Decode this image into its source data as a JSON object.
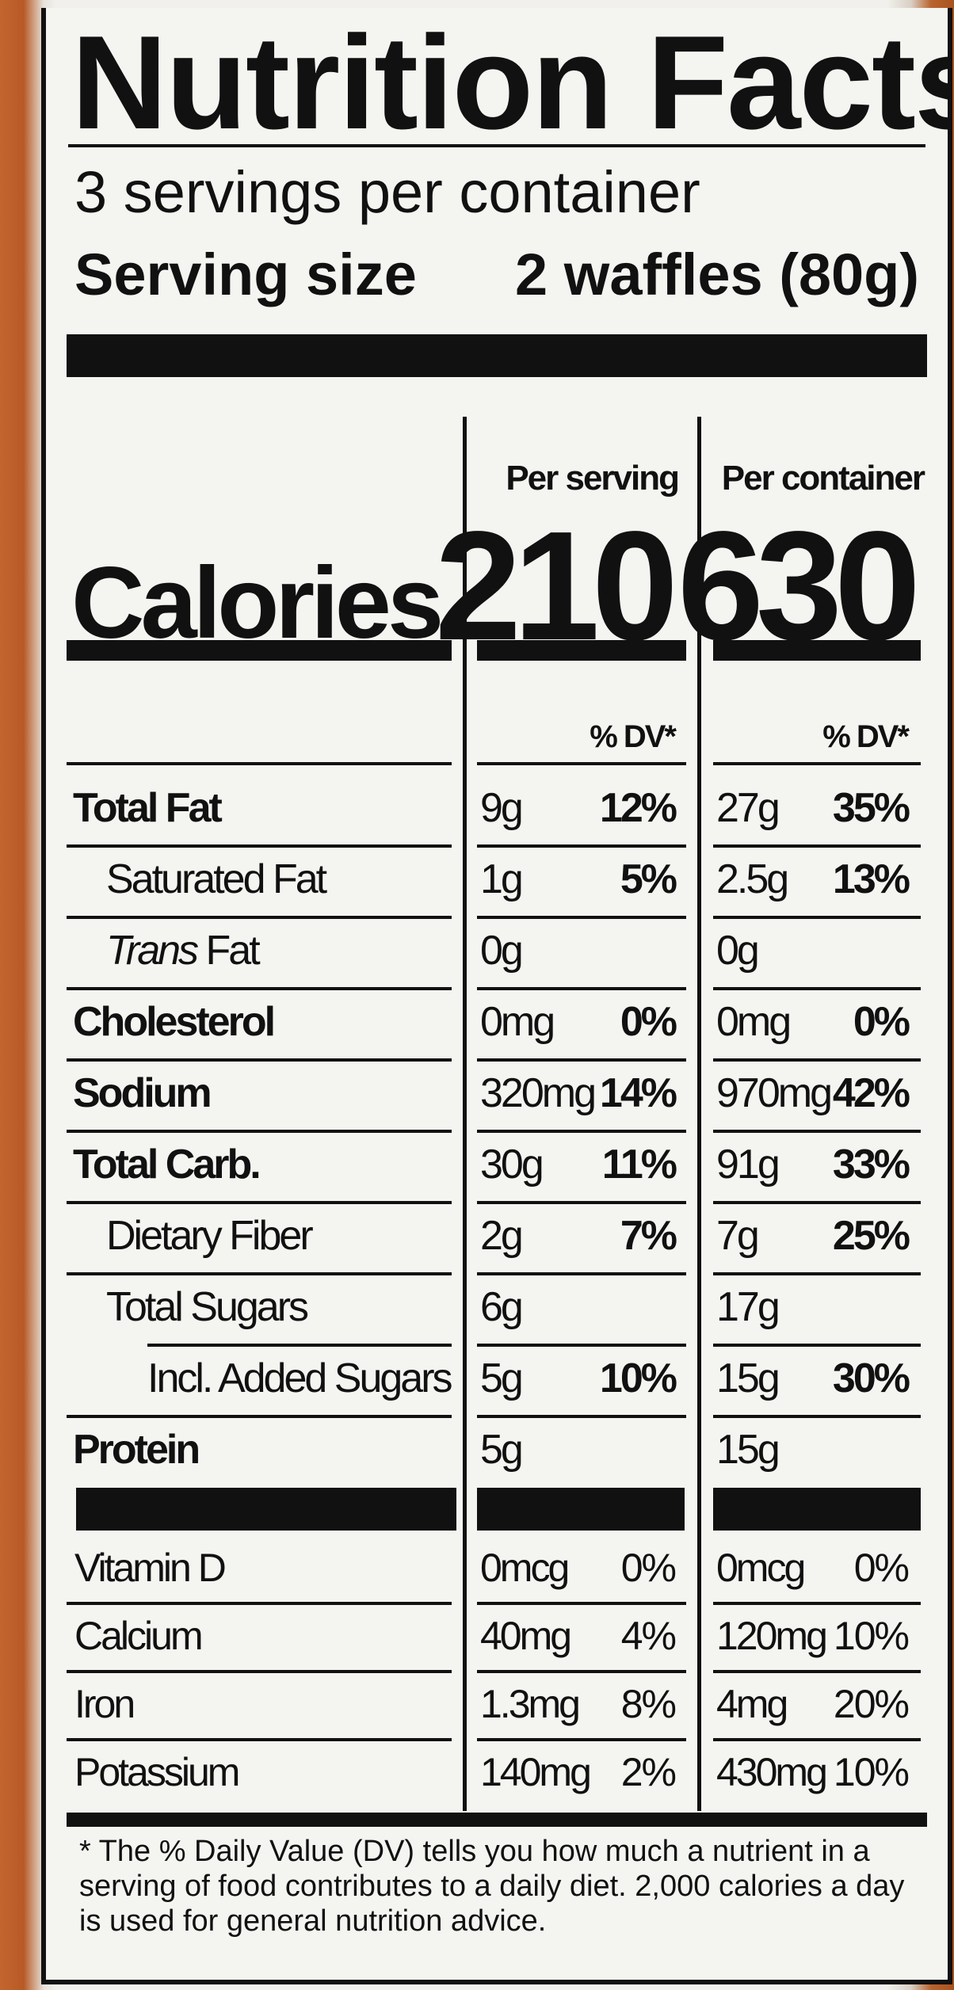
{
  "title": "Nutrition Facts",
  "servings_per_container": "3 servings per container",
  "serving_size": {
    "label": "Serving size",
    "value": "2 waffles (80g)"
  },
  "columns": {
    "per_serving": "Per serving",
    "per_container": "Per container",
    "dv": "% DV*"
  },
  "calories": {
    "label": "Calories",
    "per_serving": "210",
    "per_container": "630"
  },
  "nutrients": [
    {
      "name": "Total Fat",
      "bold": true,
      "indent": 0,
      "s_amt": "9g",
      "s_pct": "12%",
      "c_amt": "27g",
      "c_pct": "35%"
    },
    {
      "name": "Saturated Fat",
      "bold": false,
      "indent": 1,
      "s_amt": "1g",
      "s_pct": "5%",
      "c_amt": "2.5g",
      "c_pct": "13%"
    },
    {
      "name_italic": "Trans",
      "name": " Fat",
      "bold": false,
      "indent": 1,
      "s_amt": "0g",
      "s_pct": "",
      "c_amt": "0g",
      "c_pct": ""
    },
    {
      "name": "Cholesterol",
      "bold": true,
      "indent": 0,
      "s_amt": "0mg",
      "s_pct": "0%",
      "c_amt": "0mg",
      "c_pct": "0%"
    },
    {
      "name": "Sodium",
      "bold": true,
      "indent": 0,
      "s_amt": "320mg",
      "s_pct": "14%",
      "c_amt": "970mg",
      "c_pct": "42%"
    },
    {
      "name": "Total Carb.",
      "bold": true,
      "indent": 0,
      "s_amt": "30g",
      "s_pct": "11%",
      "c_amt": "91g",
      "c_pct": "33%"
    },
    {
      "name": "Dietary Fiber",
      "bold": false,
      "indent": 1,
      "s_amt": "2g",
      "s_pct": "7%",
      "c_amt": "7g",
      "c_pct": "25%"
    },
    {
      "name": "Total Sugars",
      "bold": false,
      "indent": 1,
      "s_amt": "6g",
      "s_pct": "",
      "c_amt": "17g",
      "c_pct": ""
    },
    {
      "name": "Incl. Added Sugars",
      "bold": false,
      "indent": 2,
      "s_amt": "5g",
      "s_pct": "10%",
      "c_amt": "15g",
      "c_pct": "30%"
    },
    {
      "name": "Protein",
      "bold": true,
      "indent": 0,
      "s_amt": "5g",
      "s_pct": "",
      "c_amt": "15g",
      "c_pct": ""
    }
  ],
  "vitamins": [
    {
      "name": "Vitamin D",
      "s_amt": "0mcg",
      "s_pct": "0%",
      "c_amt": "0mcg",
      "c_pct": "0%"
    },
    {
      "name": "Calcium",
      "s_amt": "40mg",
      "s_pct": "4%",
      "c_amt": "120mg",
      "c_pct": "10%"
    },
    {
      "name": "Iron",
      "s_amt": "1.3mg",
      "s_pct": "8%",
      "c_amt": "4mg",
      "c_pct": "20%"
    },
    {
      "name": "Potassium",
      "s_amt": "140mg",
      "s_pct": "2%",
      "c_amt": "430mg",
      "c_pct": "10%"
    }
  ],
  "footnote": "* The % Daily Value (DV) tells you how much a nutrient in a serving of food contributes to a daily diet. 2,000 calories a day is used for general nutrition advice."
}
